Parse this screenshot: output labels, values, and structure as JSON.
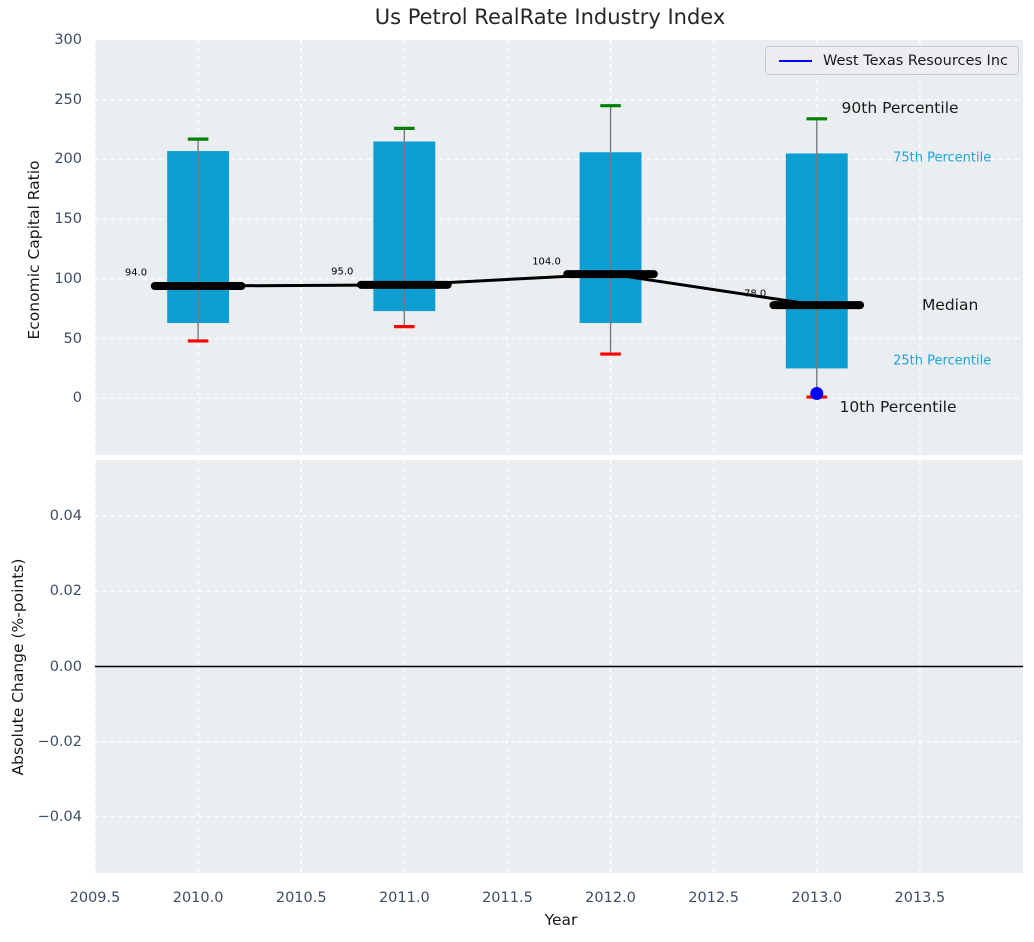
{
  "chart_data": {
    "type": "boxplot",
    "title": "Us Petrol RealRate Industry Index",
    "xlabel": "Year",
    "legend": {
      "label": "West Texas Resources Inc",
      "line_color": "#0000ff",
      "position": "upper right"
    },
    "axes": {
      "x": {
        "lim": [
          2009.5,
          2014.0
        ],
        "ticks": [
          2009.5,
          2010.0,
          2010.5,
          2011.0,
          2011.5,
          2012.0,
          2012.5,
          2013.0,
          2013.5
        ],
        "tick_labels": [
          "2009.5",
          "2010.0",
          "2010.5",
          "2011.0",
          "2011.5",
          "2012.0",
          "2012.5",
          "2013.0",
          "2013.5"
        ]
      },
      "top": {
        "ylabel": "Economic Capital Ratio",
        "ylim": [
          -47.5,
          300
        ],
        "ticks": [
          0,
          50,
          100,
          150,
          200,
          250,
          300
        ],
        "tick_labels": [
          "0",
          "50",
          "100",
          "150",
          "200",
          "250",
          "300"
        ],
        "grid": true
      },
      "bottom": {
        "ylabel": "Absolute Change (%-points)",
        "ylim": [
          -0.055,
          0.055
        ],
        "ticks": [
          0.04,
          0.02,
          0,
          -0.02,
          -0.04
        ],
        "tick_labels": [
          "0.04",
          "0.02",
          "0.00",
          "−0.02",
          "−0.04"
        ],
        "grid": true,
        "zero_line": 0.0
      }
    },
    "years": [
      2010,
      2011,
      2012,
      2013
    ],
    "percentile_10": [
      48,
      60,
      37,
      1
    ],
    "percentile_25": [
      63,
      73,
      63,
      25
    ],
    "median": [
      94,
      95,
      104,
      78
    ],
    "percentile_75": [
      207,
      215,
      206,
      205
    ],
    "percentile_90": [
      217,
      226,
      245,
      234
    ],
    "median_value_labels": [
      {
        "text": "94.0",
        "x": 2009.645,
        "y": 105
      },
      {
        "text": "95.0",
        "x": 2010.645,
        "y": 105.5
      },
      {
        "text": "104.0",
        "x": 2011.62,
        "y": 114.5
      },
      {
        "text": "78.0",
        "x": 2012.647,
        "y": 87
      }
    ],
    "company_point": {
      "name": "West Texas Resources Inc",
      "year": 2013,
      "value": 4
    },
    "annotations": [
      {
        "text": "90th Percentile",
        "x": 2013.12,
        "y": 243,
        "color": "#1a1a1a",
        "size": 15.5
      },
      {
        "text": "75th Percentile",
        "x": 2013.37,
        "y": 201,
        "color": "#22a3da",
        "size": 13
      },
      {
        "text": "Median",
        "x": 2013.51,
        "y": 78,
        "color": "#1a1a1a",
        "size": 15.5
      },
      {
        "text": "25th Percentile",
        "x": 2013.37,
        "y": 31,
        "color": "#22a3da",
        "size": 13
      },
      {
        "text": "10th Percentile",
        "x": 2013.11,
        "y": -7.5,
        "color": "#1a1a1a",
        "size": 15.5
      }
    ],
    "colors": {
      "box_fill": "#0b9ed3",
      "whisker": "#7a7a7a",
      "cap_upper": "#008000",
      "cap_lower": "#ff0000",
      "median_line": "#000000",
      "company_point": "#0000ff",
      "plot_background": "#eaeef0",
      "grid": "#ffffff",
      "tick_label": "#3d4d66",
      "zero_line": "#000000"
    }
  }
}
